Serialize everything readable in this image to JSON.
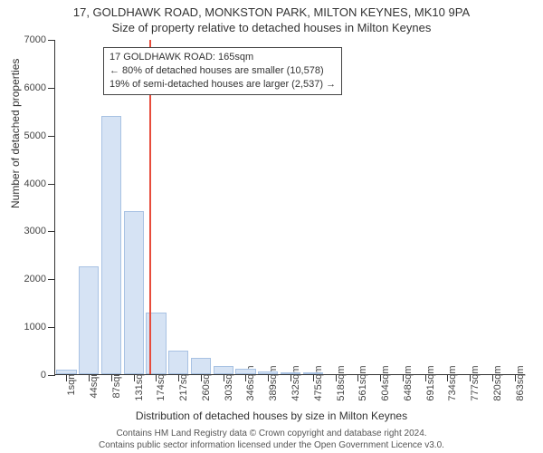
{
  "title_line1": "17, GOLDHAWK ROAD, MONKSTON PARK, MILTON KEYNES, MK10 9PA",
  "title_line2": "Size of property relative to detached houses in Milton Keynes",
  "chart": {
    "type": "histogram",
    "ymax": 7000,
    "yticks": [
      0,
      1000,
      2000,
      3000,
      4000,
      5000,
      6000,
      7000
    ],
    "x_labels": [
      "1sqm",
      "44sqm",
      "87sqm",
      "131sqm",
      "174sqm",
      "217sqm",
      "260sqm",
      "303sqm",
      "346sqm",
      "389sqm",
      "432sqm",
      "475sqm",
      "518sqm",
      "561sqm",
      "604sqm",
      "648sqm",
      "691sqm",
      "734sqm",
      "777sqm",
      "820sqm",
      "863sqm"
    ],
    "values": [
      100,
      2250,
      5400,
      3400,
      1280,
      500,
      350,
      180,
      110,
      60,
      30,
      10,
      0,
      0,
      0,
      0,
      0,
      0,
      0,
      0,
      0
    ],
    "bar_fill": "#d6e3f4",
    "bar_border": "#a8c2e3",
    "ref_color": "#e74c3c",
    "ref_position_pct": 20.0,
    "background": "#ffffff",
    "ylabel": "Number of detached properties",
    "xlabel": "Distribution of detached houses by size in Milton Keynes"
  },
  "annotation": {
    "line1": "17 GOLDHAWK ROAD: 165sqm",
    "line2": "← 80% of detached houses are smaller (10,578)",
    "line3": "19% of semi-detached houses are larger (2,537) →"
  },
  "footer_line1": "Contains HM Land Registry data © Crown copyright and database right 2024.",
  "footer_line2": "Contains public sector information licensed under the Open Government Licence v3.0."
}
